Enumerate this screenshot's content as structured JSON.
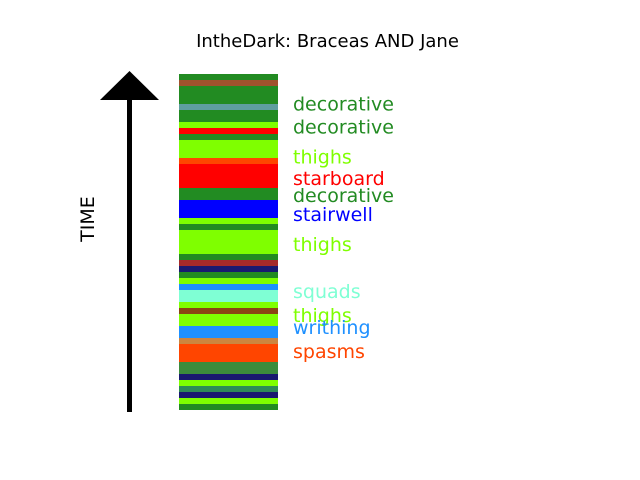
{
  "chart_data": {
    "type": "bar",
    "title": "IntheDark: Braceas AND Jane",
    "ylabel": "TIME",
    "ylim": [
      0,
      28
    ],
    "grid": false,
    "legend": "none",
    "bands": [
      {
        "start": 0.0,
        "end": 0.5,
        "color": "#228B22"
      },
      {
        "start": 0.5,
        "end": 1.0,
        "color": "#7FFF00"
      },
      {
        "start": 1.0,
        "end": 1.5,
        "color": "#191970"
      },
      {
        "start": 1.5,
        "end": 2.0,
        "color": "#2E8B57"
      },
      {
        "start": 2.0,
        "end": 2.5,
        "color": "#7FFF00"
      },
      {
        "start": 2.5,
        "end": 3.0,
        "color": "#191970"
      },
      {
        "start": 3.0,
        "end": 4.0,
        "color": "#3C8C3C"
      },
      {
        "start": 4.0,
        "end": 5.5,
        "color": "#FF4500"
      },
      {
        "start": 5.5,
        "end": 6.0,
        "color": "#CD853F"
      },
      {
        "start": 6.0,
        "end": 7.0,
        "color": "#1E90FF"
      },
      {
        "start": 7.0,
        "end": 8.0,
        "color": "#7FFF00"
      },
      {
        "start": 8.0,
        "end": 8.5,
        "color": "#8B4513"
      },
      {
        "start": 8.5,
        "end": 9.0,
        "color": "#7FFF00"
      },
      {
        "start": 9.0,
        "end": 10.0,
        "color": "#7FFFD4"
      },
      {
        "start": 10.0,
        "end": 10.5,
        "color": "#1E90FF"
      },
      {
        "start": 10.5,
        "end": 11.0,
        "color": "#7FFF00"
      },
      {
        "start": 11.0,
        "end": 11.5,
        "color": "#228B22"
      },
      {
        "start": 11.5,
        "end": 12.0,
        "color": "#191970"
      },
      {
        "start": 12.0,
        "end": 12.5,
        "color": "#A52A2A"
      },
      {
        "start": 12.5,
        "end": 13.0,
        "color": "#228B22"
      },
      {
        "start": 13.0,
        "end": 15.0,
        "color": "#7FFF00"
      },
      {
        "start": 15.0,
        "end": 15.5,
        "color": "#228B22"
      },
      {
        "start": 15.5,
        "end": 16.0,
        "color": "#7FFF00"
      },
      {
        "start": 16.0,
        "end": 17.5,
        "color": "#0000FF"
      },
      {
        "start": 17.5,
        "end": 18.5,
        "color": "#228B22"
      },
      {
        "start": 18.5,
        "end": 20.5,
        "color": "#FF0000"
      },
      {
        "start": 20.5,
        "end": 21.0,
        "color": "#FF4500"
      },
      {
        "start": 21.0,
        "end": 22.5,
        "color": "#7FFF00"
      },
      {
        "start": 22.5,
        "end": 23.0,
        "color": "#228B22"
      },
      {
        "start": 23.0,
        "end": 23.5,
        "color": "#FF0000"
      },
      {
        "start": 23.5,
        "end": 24.0,
        "color": "#7FFF00"
      },
      {
        "start": 24.0,
        "end": 25.0,
        "color": "#228B22"
      },
      {
        "start": 25.0,
        "end": 25.5,
        "color": "#5F9EA0"
      },
      {
        "start": 25.5,
        "end": 26.5,
        "color": "#228B22"
      },
      {
        "start": 26.5,
        "end": 27.0,
        "color": "#228B22"
      },
      {
        "start": 27.0,
        "end": 27.5,
        "color": "#A0522D"
      },
      {
        "start": 27.5,
        "end": 28.0,
        "color": "#228B22"
      }
    ],
    "annotations": [
      {
        "text": "decorative",
        "y": 25.4,
        "color": "#228B22"
      },
      {
        "text": "decorative",
        "y": 23.5,
        "color": "#228B22"
      },
      {
        "text": "thighs",
        "y": 21.0,
        "color": "#7FFF00"
      },
      {
        "text": "starboard",
        "y": 19.2,
        "color": "#FF0000"
      },
      {
        "text": "decorative",
        "y": 17.8,
        "color": "#228B22"
      },
      {
        "text": "stairwell",
        "y": 16.2,
        "color": "#0000FF"
      },
      {
        "text": "thighs",
        "y": 13.7,
        "color": "#7FFF00"
      },
      {
        "text": "squads",
        "y": 9.8,
        "color": "#7FFFD4"
      },
      {
        "text": "thighs",
        "y": 7.8,
        "color": "#7FFF00"
      },
      {
        "text": "writhing",
        "y": 6.8,
        "color": "#1E90FF"
      },
      {
        "text": "spasms",
        "y": 4.8,
        "color": "#FF4500"
      }
    ]
  }
}
